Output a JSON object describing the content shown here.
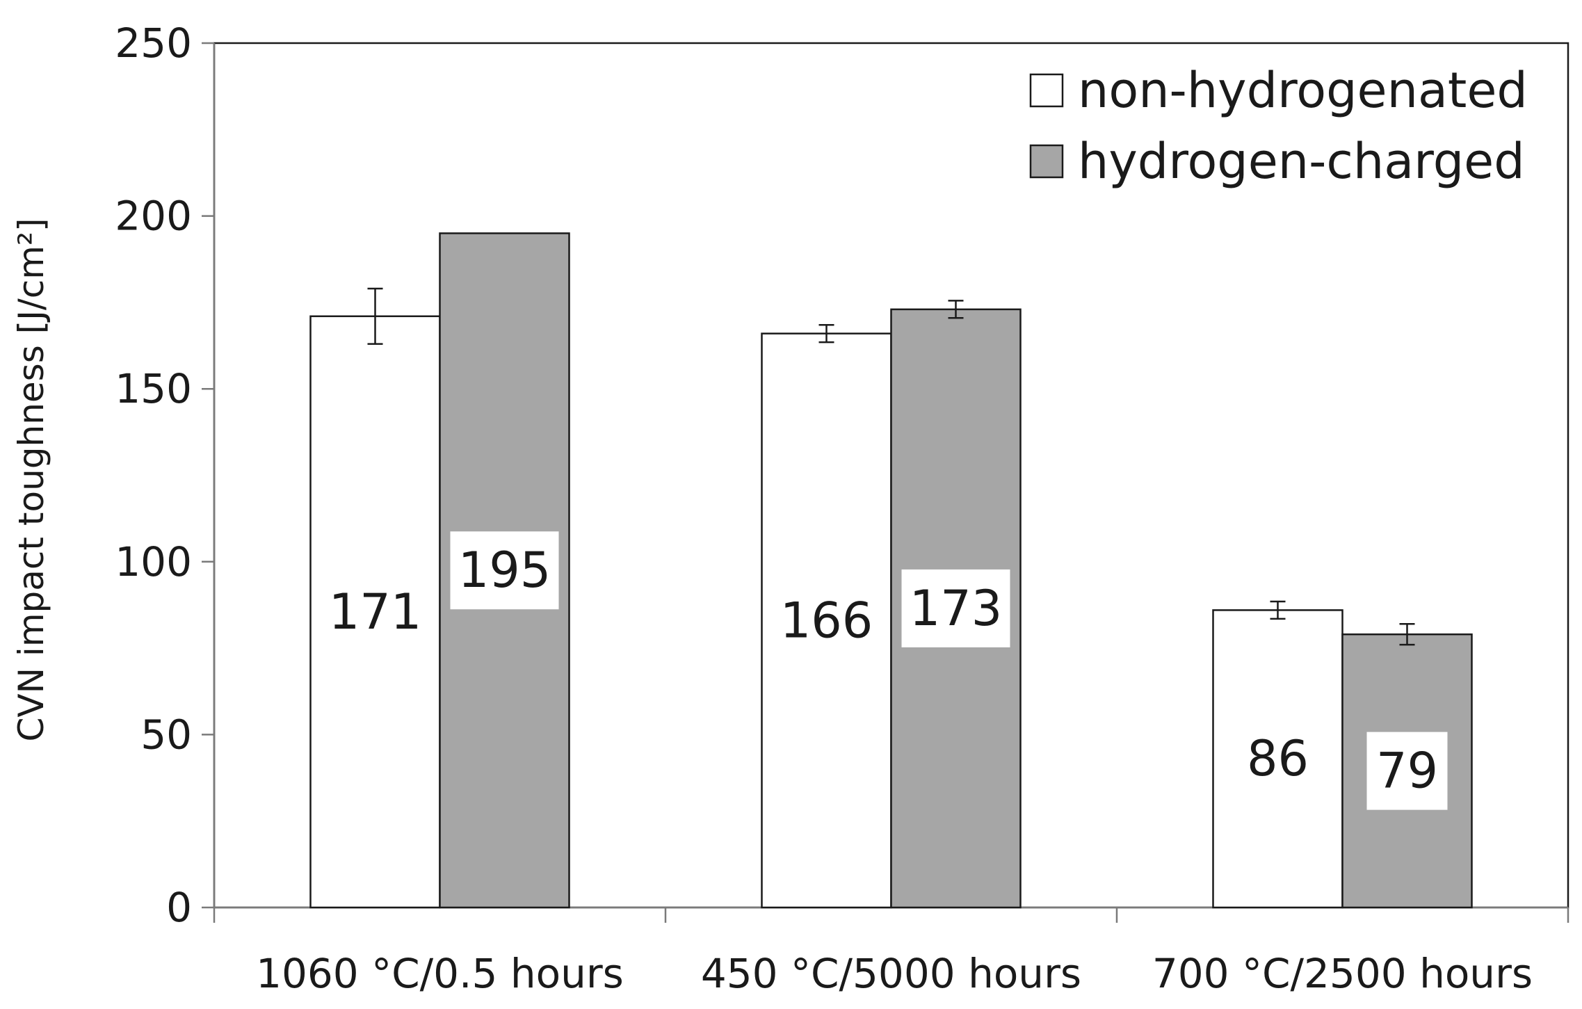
{
  "chart_data": {
    "type": "bar",
    "title": "",
    "xlabel": "",
    "ylabel": "CVN impact toughness [J/cm²]",
    "ylim": [
      0,
      250
    ],
    "yticks": [
      0,
      50,
      100,
      150,
      200,
      250
    ],
    "grid": false,
    "legend_position": "top-right",
    "categories": [
      "1060 °C/0.5 hours",
      "450 °C/5000 hours",
      "700 °C/2500 hours"
    ],
    "series": [
      {
        "name": "non-hydrogenated",
        "color": "#ffffff",
        "values": [
          171,
          166,
          86
        ],
        "error": [
          8,
          2.5,
          2.5
        ],
        "labels": [
          "171",
          "166",
          "86"
        ],
        "label_boxed": false
      },
      {
        "name": "hydrogen-charged",
        "color": "#a6a6a6",
        "values": [
          195,
          173,
          79
        ],
        "error": [
          0,
          2.5,
          3
        ],
        "labels": [
          "195",
          "173",
          "79"
        ],
        "label_boxed": true
      }
    ]
  }
}
